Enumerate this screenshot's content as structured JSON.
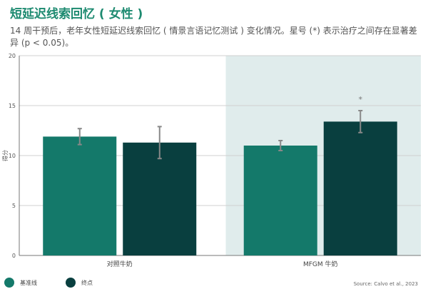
{
  "chart_data": {
    "type": "bar",
    "title": "短延迟线索回忆 ( 女性 )",
    "subtitle": "14 周干预后，老年女性短延迟线索回忆 ( 情景言语记忆测试 ) 变化情况。星号 (*) 表示治疗之间存在显著差异 (p < 0.05)。",
    "categories": [
      "对照牛奶",
      "MFGM 牛奶"
    ],
    "series": [
      {
        "name": "基准线",
        "color": "#14796a",
        "values": [
          11.9,
          11.0
        ],
        "error": [
          0.8,
          0.5
        ]
      },
      {
        "name": "终点",
        "color": "#093f3f",
        "values": [
          11.3,
          13.4
        ],
        "error": [
          1.6,
          1.1
        ]
      }
    ],
    "ylabel": "得分",
    "ylim": [
      0,
      20
    ],
    "yticks": [
      0,
      5,
      10,
      15,
      20
    ],
    "highlight_category": "MFGM 牛奶",
    "highlight_color": "#e0ecec",
    "significance": {
      "category": "MFGM 牛奶",
      "series": "终点",
      "symbol": "*"
    },
    "source": "Source: Calvo et al., 2023"
  }
}
